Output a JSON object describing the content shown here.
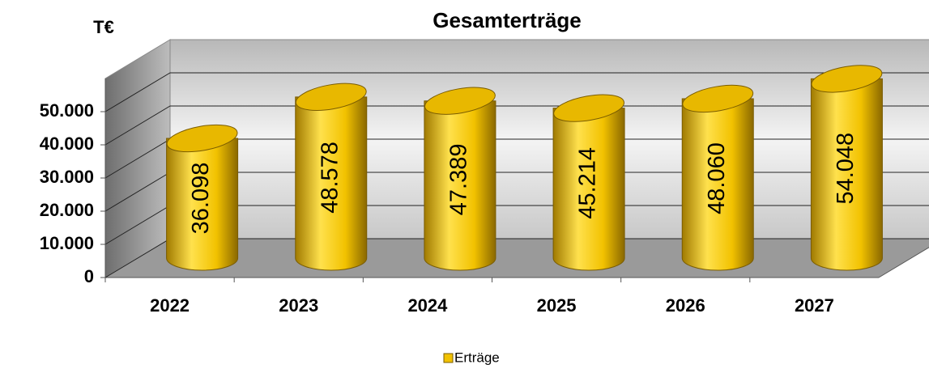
{
  "chart_data": {
    "type": "bar",
    "title": "Gesamterträge",
    "y_label": "T€",
    "categories": [
      "2022",
      "2023",
      "2024",
      "2025",
      "2026",
      "2027"
    ],
    "series": [
      {
        "name": "Erträge",
        "color": "#f2c200",
        "values": [
          36098,
          48578,
          47389,
          45214,
          48060,
          54048
        ],
        "value_labels": [
          "36.098",
          "48.578",
          "47.389",
          "45.214",
          "48.060",
          "54.048"
        ]
      }
    ],
    "ylim": [
      0,
      60000
    ],
    "yticks": [
      0,
      {
        "value": 10000,
        "label": "10.000"
      },
      {
        "value": 20000,
        "label": "20.000"
      },
      {
        "value": 30000,
        "label": "30.000"
      },
      {
        "value": 40000,
        "label": "40.000"
      },
      {
        "value": 50000,
        "label": "50.000"
      }
    ],
    "grid": true,
    "legend": "bottom"
  }
}
